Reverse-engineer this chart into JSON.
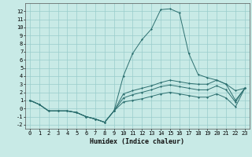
{
  "title": "",
  "xlabel": "Humidex (Indice chaleur)",
  "bg_color": "#c8eae6",
  "grid_color": "#99cccc",
  "line_color": "#2d7070",
  "x": [
    0,
    1,
    2,
    3,
    4,
    5,
    6,
    7,
    8,
    9,
    10,
    11,
    12,
    13,
    14,
    15,
    16,
    17,
    18,
    19,
    20,
    21,
    22,
    23
  ],
  "line1": [
    1.0,
    0.5,
    -0.3,
    -0.3,
    -0.3,
    -0.5,
    -1.0,
    -1.3,
    -1.7,
    -0.3,
    4.0,
    6.8,
    8.5,
    9.8,
    12.2,
    12.3,
    11.8,
    6.8,
    4.2,
    3.8,
    3.5,
    3.0,
    1.0,
    2.5
  ],
  "line2": [
    1.0,
    0.5,
    -0.3,
    -0.3,
    -0.3,
    -0.5,
    -1.0,
    -1.3,
    -1.7,
    -0.3,
    1.8,
    2.2,
    2.5,
    2.8,
    3.2,
    3.5,
    3.3,
    3.1,
    3.0,
    3.0,
    3.5,
    3.0,
    2.2,
    2.5
  ],
  "line3": [
    1.0,
    0.5,
    -0.3,
    -0.3,
    -0.3,
    -0.5,
    -1.0,
    -1.3,
    -1.7,
    -0.3,
    1.3,
    1.7,
    2.0,
    2.3,
    2.7,
    2.9,
    2.7,
    2.5,
    2.3,
    2.3,
    2.8,
    2.3,
    0.8,
    2.5
  ],
  "line4": [
    1.0,
    0.5,
    -0.3,
    -0.3,
    -0.3,
    -0.5,
    -1.0,
    -1.3,
    -1.7,
    -0.3,
    0.8,
    1.0,
    1.2,
    1.5,
    1.8,
    2.0,
    1.8,
    1.6,
    1.4,
    1.4,
    1.8,
    1.3,
    0.2,
    2.5
  ],
  "ylim": [
    -2.5,
    13.0
  ],
  "xlim": [
    -0.5,
    23.5
  ],
  "yticks": [
    -2,
    -1,
    0,
    1,
    2,
    3,
    4,
    5,
    6,
    7,
    8,
    9,
    10,
    11,
    12
  ],
  "xticks": [
    0,
    1,
    2,
    3,
    4,
    5,
    6,
    7,
    8,
    9,
    10,
    11,
    12,
    13,
    14,
    15,
    16,
    17,
    18,
    19,
    20,
    21,
    22,
    23
  ],
  "tick_fontsize": 5,
  "xlabel_fontsize": 6,
  "marker_size": 1.5,
  "linewidth": 0.7
}
